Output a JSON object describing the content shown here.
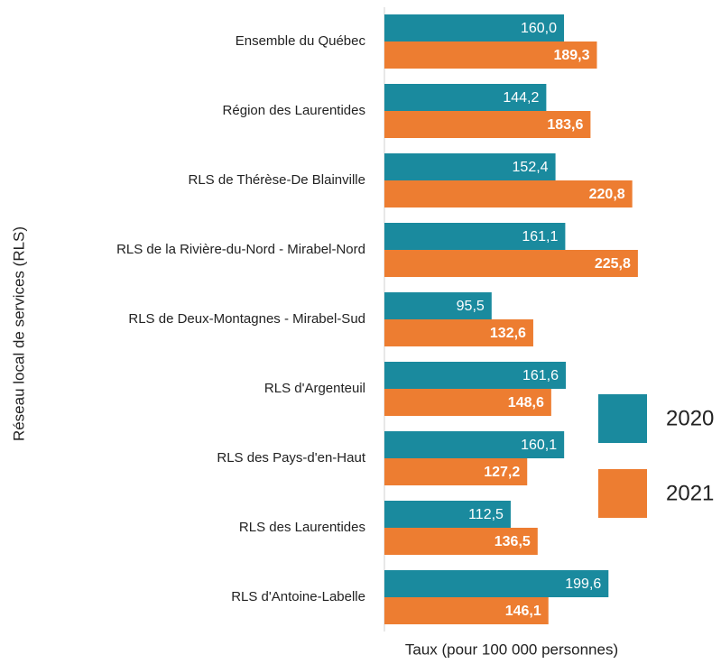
{
  "chart_data": {
    "type": "bar",
    "orientation": "horizontal",
    "x_label": "Taux (pour 100 000 personnes)",
    "y_label": "Réseau local de services (RLS)",
    "categories": [
      "Ensemble du Québec",
      "Région des Laurentides",
      "RLS de Thérèse-De Blainville",
      "RLS de la Rivière-du-Nord - Mirabel-Nord",
      "RLS de Deux-Montagnes - Mirabel-Sud",
      "RLS d'Argenteuil",
      "RLS des Pays-d'en-Haut",
      "RLS des Laurentides",
      "RLS d'Antoine-Labelle"
    ],
    "series": [
      {
        "name": "2020",
        "color": "#1a8a9e",
        "values": [
          160.0,
          144.2,
          152.4,
          161.1,
          95.5,
          161.6,
          160.1,
          112.5,
          199.6
        ],
        "value_labels": [
          "160,0",
          "144,2",
          "152,4",
          "161,1",
          "95,5",
          "161,6",
          "160,1",
          "112,5",
          "199,6"
        ]
      },
      {
        "name": "2021",
        "color": "#ed7d31",
        "values": [
          189.3,
          183.6,
          220.8,
          225.8,
          132.6,
          148.6,
          127.2,
          136.5,
          146.1
        ],
        "value_labels": [
          "189,3",
          "183,6",
          "220,8",
          "225,8",
          "132,6",
          "148,6",
          "127,2",
          "136,5",
          "146,1"
        ]
      }
    ],
    "xlim": [
      0,
      250
    ],
    "legend": "right"
  }
}
